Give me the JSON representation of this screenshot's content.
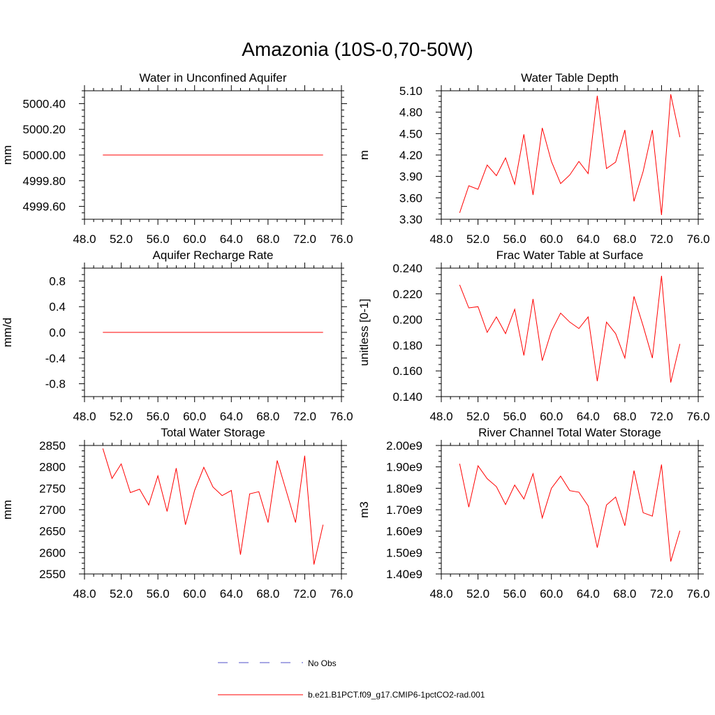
{
  "figure": {
    "title": "Amazonia (10S-0,70-50W)"
  },
  "legend": {
    "obs_label": "No Obs",
    "model_label": "b.e21.B1PCT.f09_g17.CMIP6-1pctCO2-rad.001",
    "obs_color": "#4f4fc8",
    "model_color": "#ff0000"
  },
  "chart_data": [
    {
      "type": "line",
      "title": "Water in Unconfined Aquifer",
      "ylabel": "mm",
      "xlim": [
        48,
        76
      ],
      "ylim": [
        4999.5,
        5000.5
      ],
      "x_ticks": [
        "48.0",
        "52.0",
        "56.0",
        "60.0",
        "64.0",
        "68.0",
        "72.0",
        "76.0"
      ],
      "y_ticks": [
        "4999.60",
        "4999.80",
        "5000.00",
        "5000.20",
        "5000.40"
      ],
      "x": [
        50,
        51,
        52,
        53,
        54,
        55,
        56,
        57,
        58,
        59,
        60,
        61,
        62,
        63,
        64,
        65,
        66,
        67,
        68,
        69,
        70,
        71,
        72,
        73,
        74
      ],
      "series": [
        {
          "values": [
            5000,
            5000,
            5000,
            5000,
            5000,
            5000,
            5000,
            5000,
            5000,
            5000,
            5000,
            5000,
            5000,
            5000,
            5000,
            5000,
            5000,
            5000,
            5000,
            5000,
            5000,
            5000,
            5000,
            5000,
            5000
          ]
        }
      ]
    },
    {
      "type": "line",
      "title": "Water Table Depth",
      "ylabel": "m",
      "xlim": [
        48,
        76
      ],
      "ylim": [
        3.3,
        5.1
      ],
      "x_ticks": [
        "48.0",
        "52.0",
        "56.0",
        "60.0",
        "64.0",
        "68.0",
        "72.0",
        "76.0"
      ],
      "y_ticks": [
        "3.30",
        "3.60",
        "3.90",
        "4.20",
        "4.50",
        "4.80",
        "5.10"
      ],
      "x": [
        50,
        51,
        52,
        53,
        54,
        55,
        56,
        57,
        58,
        59,
        60,
        61,
        62,
        63,
        64,
        65,
        66,
        67,
        68,
        69,
        70,
        71,
        72,
        73,
        74
      ],
      "series": [
        {
          "values": [
            3.39,
            3.77,
            3.72,
            4.06,
            3.91,
            4.16,
            3.79,
            4.49,
            3.64,
            4.58,
            4.11,
            3.8,
            3.92,
            4.11,
            3.94,
            5.03,
            4.01,
            4.1,
            4.55,
            3.55,
            3.97,
            4.55,
            3.36,
            5.05,
            4.45
          ]
        }
      ]
    },
    {
      "type": "line",
      "title": "Aquifer Recharge Rate",
      "ylabel": "mm/d",
      "xlim": [
        48,
        76
      ],
      "ylim": [
        -1.0,
        1.0
      ],
      "x_ticks": [
        "48.0",
        "52.0",
        "56.0",
        "60.0",
        "64.0",
        "68.0",
        "72.0",
        "76.0"
      ],
      "y_ticks": [
        "-0.8",
        "-0.4",
        "0.0",
        "0.4",
        "0.8"
      ],
      "x": [
        50,
        51,
        52,
        53,
        54,
        55,
        56,
        57,
        58,
        59,
        60,
        61,
        62,
        63,
        64,
        65,
        66,
        67,
        68,
        69,
        70,
        71,
        72,
        73,
        74
      ],
      "series": [
        {
          "values": [
            0,
            0,
            0,
            0,
            0,
            0,
            0,
            0,
            0,
            0,
            0,
            0,
            0,
            0,
            0,
            0,
            0,
            0,
            0,
            0,
            0,
            0,
            0,
            0,
            0
          ]
        }
      ]
    },
    {
      "type": "line",
      "title": "Frac Water Table at Surface",
      "ylabel": "unitless [0-1]",
      "xlim": [
        48,
        76
      ],
      "ylim": [
        0.14,
        0.24
      ],
      "x_ticks": [
        "48.0",
        "52.0",
        "56.0",
        "60.0",
        "64.0",
        "68.0",
        "72.0",
        "76.0"
      ],
      "y_ticks": [
        "0.140",
        "0.160",
        "0.180",
        "0.200",
        "0.220",
        "0.240"
      ],
      "x": [
        50,
        51,
        52,
        53,
        54,
        55,
        56,
        57,
        58,
        59,
        60,
        61,
        62,
        63,
        64,
        65,
        66,
        67,
        68,
        69,
        70,
        71,
        72,
        73,
        74
      ],
      "series": [
        {
          "values": [
            0.227,
            0.209,
            0.21,
            0.19,
            0.202,
            0.189,
            0.208,
            0.172,
            0.216,
            0.168,
            0.191,
            0.205,
            0.198,
            0.193,
            0.202,
            0.152,
            0.198,
            0.189,
            0.17,
            0.218,
            0.195,
            0.17,
            0.234,
            0.151,
            0.181
          ]
        }
      ]
    },
    {
      "type": "line",
      "title": "Total Water Storage",
      "ylabel": "mm",
      "xlim": [
        48,
        76
      ],
      "ylim": [
        2550,
        2850
      ],
      "x_ticks": [
        "48.0",
        "52.0",
        "56.0",
        "60.0",
        "64.0",
        "68.0",
        "72.0",
        "76.0"
      ],
      "y_ticks": [
        "2550",
        "2600",
        "2650",
        "2700",
        "2750",
        "2800",
        "2850"
      ],
      "x": [
        50,
        51,
        52,
        53,
        54,
        55,
        56,
        57,
        58,
        59,
        60,
        61,
        62,
        63,
        64,
        65,
        66,
        67,
        68,
        69,
        70,
        71,
        72,
        73,
        74
      ],
      "series": [
        {
          "values": [
            2843,
            2773,
            2807,
            2740,
            2748,
            2711,
            2779,
            2696,
            2797,
            2665,
            2745,
            2799,
            2753,
            2733,
            2745,
            2595,
            2737,
            2742,
            2670,
            2815,
            2743,
            2670,
            2826,
            2572,
            2665
          ]
        }
      ]
    },
    {
      "type": "line",
      "title": "River Channel Total Water Storage",
      "ylabel": "m3",
      "xlim": [
        48,
        76
      ],
      "ylim": [
        1.4,
        2.0
      ],
      "y_unit_note": "x1e9",
      "x_ticks": [
        "48.0",
        "52.0",
        "56.0",
        "60.0",
        "64.0",
        "68.0",
        "72.0",
        "76.0"
      ],
      "y_ticks": [
        "1.40e9",
        "1.50e9",
        "1.60e9",
        "1.70e9",
        "1.80e9",
        "1.90e9",
        "2.00e9"
      ],
      "x": [
        50,
        51,
        52,
        53,
        54,
        55,
        56,
        57,
        58,
        59,
        60,
        61,
        62,
        63,
        64,
        65,
        66,
        67,
        68,
        69,
        70,
        71,
        72,
        73,
        74
      ],
      "series": [
        {
          "values": [
            1.915,
            1.712,
            1.905,
            1.845,
            1.808,
            1.724,
            1.815,
            1.75,
            1.868,
            1.662,
            1.8,
            1.857,
            1.789,
            1.782,
            1.718,
            1.523,
            1.722,
            1.759,
            1.625,
            1.883,
            1.686,
            1.67,
            1.911,
            1.458,
            1.602
          ]
        }
      ]
    }
  ]
}
